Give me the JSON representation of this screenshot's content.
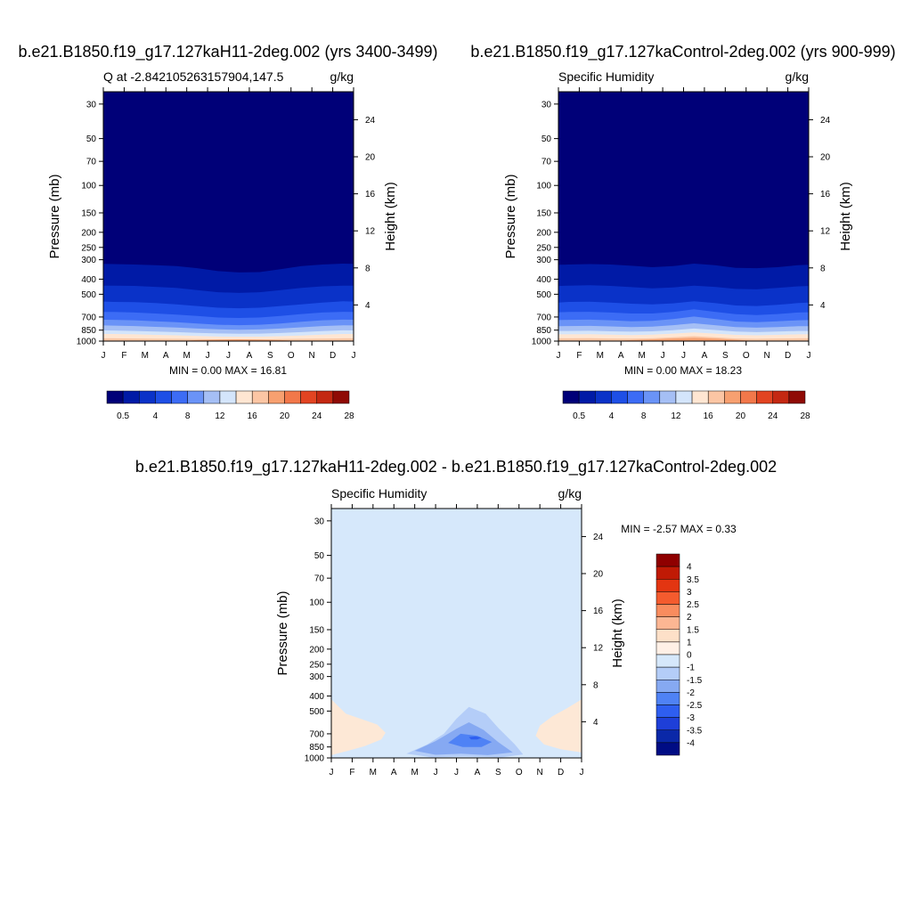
{
  "figure": {
    "title_left": "b.e21.B1850.f19_g17.127kaH11-2deg.002 (yrs 3400-3499)",
    "title_right": "b.e21.B1850.f19_g17.127kaControl-2deg.002 (yrs 900-999)",
    "title_bottom": "b.e21.B1850.f19_g17.127kaH11-2deg.002 - b.e21.B1850.f19_g17.127kaControl-2deg.002"
  },
  "colors": {
    "full_palette": [
      "#000078",
      "#001aa6",
      "#0a32c8",
      "#1e4fe6",
      "#3c6cf5",
      "#6a93f7",
      "#a5bff5",
      "#d4e5fb",
      "#ffe6d2",
      "#fcc6a4",
      "#f7a070",
      "#f2784a",
      "#e24422",
      "#c42812",
      "#8f0a05"
    ],
    "diff_palette": [
      "#000c84",
      "#0a28a8",
      "#1e3fd8",
      "#2e5ef0",
      "#4f82f5",
      "#86a9f2",
      "#b4cdf8",
      "#d6e8fb",
      "#fff0e6",
      "#fde0c8",
      "#fcb693",
      "#f98c5e",
      "#f45b2e",
      "#e33511",
      "#c01a05",
      "#8f0000"
    ]
  },
  "chart_data": [
    {
      "type": "heatmap",
      "name": "left",
      "title": "b.e21.B1850.f19_g17.127kaH11-2deg.002 (yrs 3400-3499)",
      "subtitle_left": "Q at -2.842105263157904,147.5",
      "subtitle_right": "g/kg",
      "xlabel": "",
      "ylabel": "Pressure (mb)",
      "ylabel_right": "Height (km)",
      "x_ticks": [
        "J",
        "F",
        "M",
        "A",
        "M",
        "J",
        "J",
        "A",
        "S",
        "O",
        "N",
        "D",
        "J"
      ],
      "pressure_ticks": [
        30,
        50,
        70,
        100,
        150,
        200,
        250,
        300,
        400,
        500,
        700,
        850,
        1000
      ],
      "height_ticks": [
        24,
        20,
        16,
        12,
        8,
        4
      ],
      "ylim": [
        1000,
        25
      ],
      "y_scale": "log",
      "stats": "MIN =   0.00 MAX =  16.81",
      "colorbar_labels": [
        "0.5",
        "4",
        "8",
        "12",
        "16",
        "20",
        "24",
        "28"
      ],
      "level_pressure_by_month": [
        [
          320,
          322,
          325,
          330,
          340,
          355,
          362,
          360,
          345,
          330,
          322,
          318
        ],
        [
          440,
          442,
          448,
          455,
          470,
          485,
          490,
          485,
          470,
          455,
          445,
          440
        ],
        [
          560,
          562,
          570,
          580,
          595,
          610,
          615,
          610,
          595,
          580,
          565,
          555
        ],
        [
          650,
          655,
          665,
          675,
          690,
          705,
          710,
          705,
          690,
          670,
          655,
          648
        ],
        [
          730,
          735,
          745,
          755,
          770,
          785,
          790,
          785,
          770,
          750,
          735,
          728
        ],
        [
          795,
          800,
          810,
          818,
          830,
          840,
          845,
          842,
          830,
          815,
          800,
          792
        ],
        [
          855,
          860,
          868,
          875,
          885,
          893,
          897,
          895,
          887,
          875,
          862,
          853
        ],
        [
          900,
          905,
          912,
          918,
          928,
          935,
          938,
          936,
          930,
          920,
          908,
          900
        ],
        [
          960,
          962,
          966,
          968,
          972,
          975,
          977,
          976,
          972,
          968,
          964,
          960
        ],
        [
          1000,
          1000,
          1000,
          1000,
          985,
          978,
          974,
          976,
          985,
          1000,
          1000,
          1000
        ]
      ]
    },
    {
      "type": "heatmap",
      "name": "right",
      "title": "b.e21.B1850.f19_g17.127kaControl-2deg.002 (yrs 900-999)",
      "subtitle_left": "Specific Humidity",
      "subtitle_right": "g/kg",
      "xlabel": "",
      "ylabel": "Pressure (mb)",
      "ylabel_right": "Height (km)",
      "x_ticks": [
        "J",
        "F",
        "M",
        "A",
        "M",
        "J",
        "J",
        "A",
        "S",
        "O",
        "N",
        "D",
        "J"
      ],
      "pressure_ticks": [
        30,
        50,
        70,
        100,
        150,
        200,
        250,
        300,
        400,
        500,
        700,
        850,
        1000
      ],
      "height_ticks": [
        24,
        20,
        16,
        12,
        8,
        4
      ],
      "ylim": [
        1000,
        25
      ],
      "y_scale": "log",
      "stats": "MIN =   0.00 MAX =  18.23",
      "colorbar_labels": [
        "0.5",
        "4",
        "8",
        "12",
        "16",
        "20",
        "24",
        "28"
      ],
      "level_pressure_by_month": [
        [
          322,
          320,
          322,
          328,
          335,
          330,
          318,
          325,
          338,
          340,
          335,
          325
        ],
        [
          440,
          438,
          442,
          450,
          458,
          452,
          440,
          448,
          462,
          465,
          455,
          445
        ],
        [
          560,
          558,
          565,
          575,
          580,
          572,
          555,
          570,
          590,
          595,
          585,
          570
        ],
        [
          650,
          648,
          655,
          665,
          665,
          650,
          625,
          648,
          672,
          680,
          670,
          655
        ],
        [
          730,
          728,
          735,
          745,
          742,
          722,
          695,
          720,
          748,
          755,
          745,
          735
        ],
        [
          800,
          798,
          805,
          812,
          808,
          790,
          768,
          790,
          812,
          820,
          812,
          802
        ],
        [
          860,
          858,
          865,
          870,
          865,
          850,
          830,
          848,
          868,
          875,
          868,
          860
        ],
        [
          905,
          903,
          910,
          915,
          910,
          895,
          880,
          895,
          912,
          918,
          912,
          905
        ],
        [
          960,
          958,
          962,
          965,
          960,
          945,
          930,
          945,
          962,
          968,
          962,
          960
        ],
        [
          1000,
          1000,
          1000,
          985,
          975,
          965,
          955,
          965,
          980,
          1000,
          1000,
          1000
        ]
      ]
    },
    {
      "type": "heatmap",
      "name": "difference",
      "title": "b.e21.B1850.f19_g17.127kaH11-2deg.002 - b.e21.B1850.f19_g17.127kaControl-2deg.002",
      "subtitle_left": "Specific Humidity",
      "subtitle_right": "g/kg",
      "xlabel": "",
      "ylabel": "Pressure (mb)",
      "ylabel_right": "Height (km)",
      "x_ticks": [
        "J",
        "F",
        "M",
        "A",
        "M",
        "J",
        "J",
        "A",
        "S",
        "O",
        "N",
        "D",
        "J"
      ],
      "pressure_ticks": [
        30,
        50,
        70,
        100,
        150,
        200,
        250,
        300,
        400,
        500,
        700,
        850,
        1000
      ],
      "height_ticks": [
        24,
        20,
        16,
        12,
        8,
        4
      ],
      "ylim": [
        1000,
        25
      ],
      "y_scale": "log",
      "stats": "MIN =  -2.57 MAX =   0.33",
      "colorbar_labels": [
        "4",
        "3.5",
        "3",
        "2.5",
        "2",
        "1.5",
        "1",
        "0",
        "-1",
        "-1.5",
        "-2",
        "-2.5",
        "-3",
        "-3.5",
        "-4"
      ],
      "background_value_range": [
        -0.5,
        0
      ],
      "anomalies": [
        {
          "level": "0 to 0.5",
          "shape": [
            [
              0,
              420
            ],
            [
              0.7,
              520
            ],
            [
              1.4,
              560
            ],
            [
              2.2,
              610
            ],
            [
              2.6,
              690
            ],
            [
              2.4,
              760
            ],
            [
              1.6,
              840
            ],
            [
              0.8,
              900
            ],
            [
              0,
              960
            ]
          ]
        },
        {
          "level": "0 to 0.5",
          "shape": [
            [
              12,
              420
            ],
            [
              11.3,
              480
            ],
            [
              10.6,
              540
            ],
            [
              10.0,
              620
            ],
            [
              9.8,
              720
            ],
            [
              10.2,
              820
            ],
            [
              11,
              880
            ],
            [
              12,
              920
            ]
          ]
        },
        {
          "level": "-0.5 to -1",
          "shape": [
            [
              3.6,
              940
            ],
            [
              4.6,
              820
            ],
            [
              5.4,
              700
            ],
            [
              6.0,
              560
            ],
            [
              6.6,
              470
            ],
            [
              7.4,
              520
            ],
            [
              8.0,
              640
            ],
            [
              8.8,
              820
            ],
            [
              9.2,
              950
            ],
            [
              8.2,
              990
            ],
            [
              6.4,
              980
            ],
            [
              4.8,
              990
            ]
          ]
        },
        {
          "level": "-1 to -1.5",
          "shape": [
            [
              4.0,
              900
            ],
            [
              5.0,
              780
            ],
            [
              6.0,
              650
            ],
            [
              6.6,
              590
            ],
            [
              7.3,
              660
            ],
            [
              8.0,
              790
            ],
            [
              8.7,
              920
            ],
            [
              7.5,
              960
            ],
            [
              6.2,
              940
            ],
            [
              5.0,
              955
            ]
          ]
        },
        {
          "level": "-1.5 to -2",
          "shape": [
            [
              5.6,
              800
            ],
            [
              6.2,
              700
            ],
            [
              7.0,
              720
            ],
            [
              7.7,
              790
            ],
            [
              7.2,
              850
            ],
            [
              6.3,
              850
            ]
          ]
        },
        {
          "level": "-2 to -2.5",
          "shape": [
            [
              6.6,
              735
            ],
            [
              6.9,
              728
            ],
            [
              7.2,
              740
            ],
            [
              7.0,
              760
            ],
            [
              6.7,
              760
            ]
          ]
        }
      ]
    }
  ]
}
